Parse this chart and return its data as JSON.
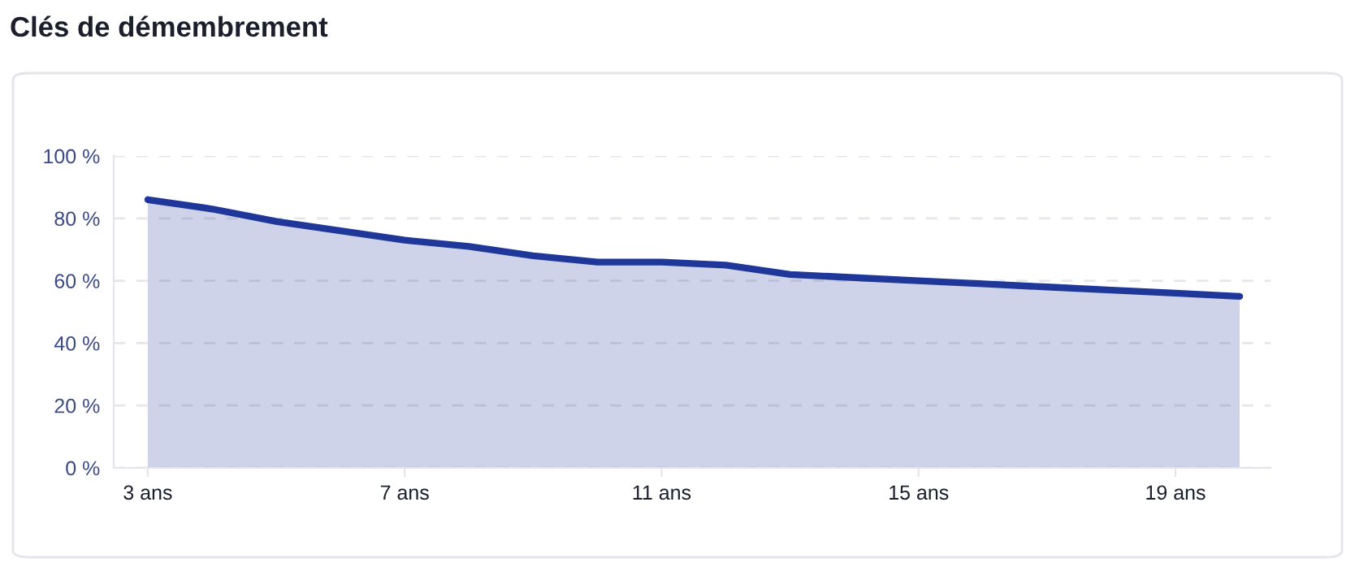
{
  "chart_data": {
    "type": "area",
    "title": "Clés de démembrement",
    "categories": [
      "3 ans",
      null,
      null,
      null,
      "7 ans",
      null,
      null,
      null,
      "11 ans",
      null,
      null,
      null,
      "15 ans",
      null,
      null,
      null,
      "19 ans",
      null
    ],
    "series": [
      {
        "color": "#1e3799",
        "values": [
          86,
          83,
          79,
          76,
          73,
          71,
          68,
          66,
          66,
          65,
          62,
          61,
          60,
          59,
          58,
          57,
          56,
          55
        ]
      }
    ],
    "ylim": [
      0,
      100
    ],
    "yticks": [
      {
        "value": 0,
        "label": "0 %"
      },
      {
        "value": 20,
        "label": "20 %"
      },
      {
        "value": 40,
        "label": "40 %"
      },
      {
        "value": 60,
        "label": "60 %"
      },
      {
        "value": 80,
        "label": "80 %"
      },
      {
        "value": 100,
        "label": "100 %"
      }
    ],
    "grid": "y",
    "legend": false
  }
}
